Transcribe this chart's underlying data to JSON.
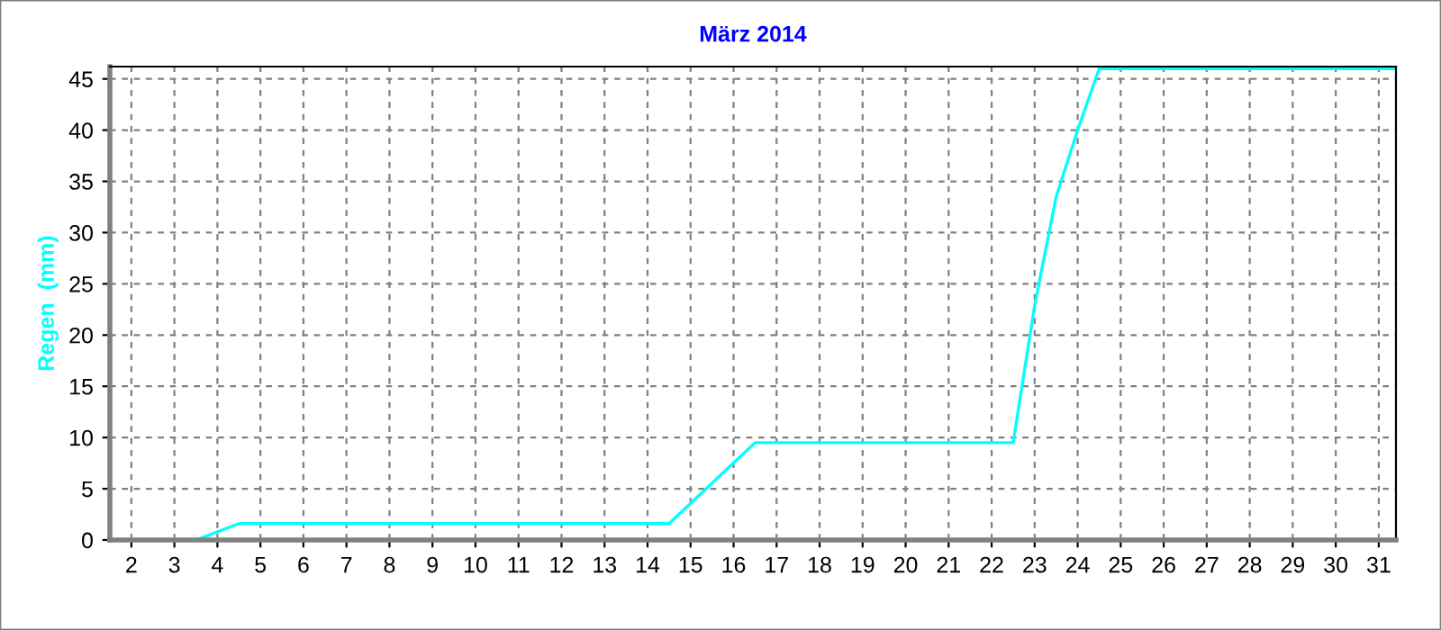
{
  "chart_data": {
    "type": "line",
    "title": "März 2014",
    "ylabel": "Regen  (mm)",
    "x": [
      1.5,
      3.5,
      4.5,
      14.5,
      16.5,
      22.5,
      23,
      23.5,
      24,
      24.5,
      31.4
    ],
    "series": [
      {
        "color": "#00ffff",
        "values": [
          0,
          0,
          1.6,
          1.6,
          9.5,
          9.5,
          22.9,
          33.5,
          40,
          46,
          46
        ]
      }
    ],
    "xlim": [
      1.5,
      31.4
    ],
    "xticks": [
      2,
      3,
      4,
      5,
      6,
      7,
      8,
      9,
      10,
      11,
      12,
      13,
      14,
      15,
      16,
      17,
      18,
      19,
      20,
      21,
      22,
      23,
      24,
      25,
      26,
      27,
      28,
      29,
      30,
      31
    ],
    "ylim": [
      0,
      46.2
    ],
    "yticks": [
      0,
      5,
      10,
      15,
      20,
      25,
      30,
      35,
      40,
      45
    ],
    "grid": true,
    "marker": "none",
    "line_style": "solid",
    "legend": false
  }
}
